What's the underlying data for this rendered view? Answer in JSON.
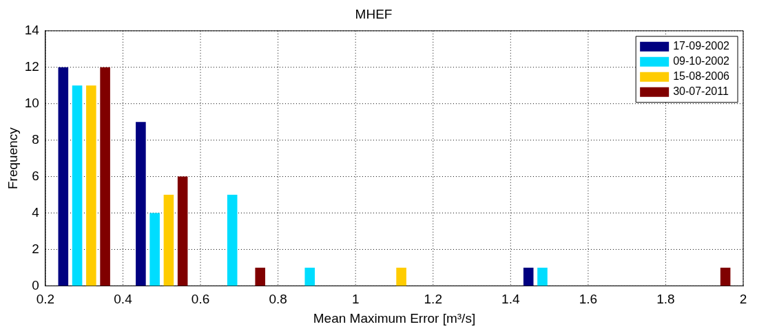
{
  "chart_data": {
    "type": "bar",
    "title": "MHEF",
    "xlabel": "Mean Maximum Error [m³/s]",
    "ylabel": "Frequency",
    "x": [
      0.3,
      0.5,
      0.7,
      0.9,
      1.1,
      1.3,
      1.5,
      1.7,
      1.9
    ],
    "series": [
      {
        "name": "17-09-2002",
        "color": "#000080",
        "values": [
          12,
          9,
          0,
          0,
          0,
          0,
          1,
          0,
          0
        ]
      },
      {
        "name": "09-10-2002",
        "color": "#00ddff",
        "values": [
          11,
          4,
          5,
          1,
          0,
          0,
          1,
          0,
          0
        ]
      },
      {
        "name": "15-08-2006",
        "color": "#ffcc00",
        "values": [
          11,
          5,
          0,
          0,
          1,
          0,
          0,
          0,
          0
        ]
      },
      {
        "name": "30-07-2011",
        "color": "#800000",
        "values": [
          12,
          6,
          1,
          0,
          0,
          0,
          0,
          0,
          1
        ]
      }
    ],
    "xlim": [
      0.2,
      2
    ],
    "xticks": [
      0.2,
      0.4,
      0.6,
      0.8,
      1,
      1.2,
      1.4,
      1.6,
      1.8,
      2
    ],
    "ylim": [
      0,
      14
    ],
    "yticks": [
      0,
      2,
      4,
      6,
      8,
      10,
      12,
      14
    ],
    "grid": true,
    "legend": "top right"
  }
}
